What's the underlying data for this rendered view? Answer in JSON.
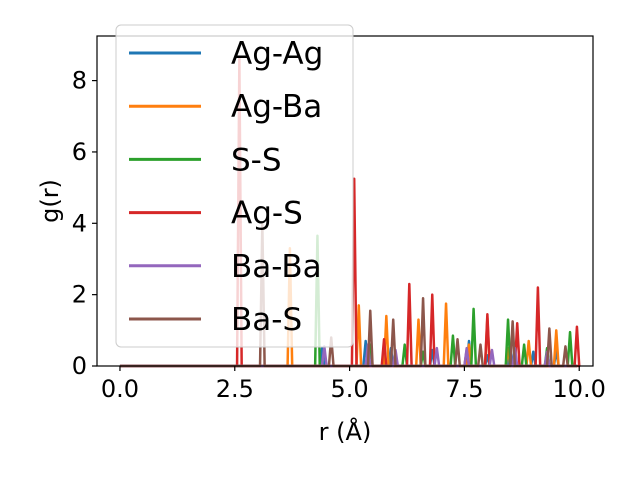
{
  "chart_data": {
    "type": "line",
    "xlabel": "r (Å)",
    "ylabel": "g(r)",
    "xlim": [
      -0.5,
      10.3
    ],
    "ylim": [
      0,
      9.25
    ],
    "x_ticks": [
      0.0,
      2.5,
      5.0,
      7.5,
      10.0
    ],
    "x_tick_labels": [
      "0.0",
      "2.5",
      "5.0",
      "7.5",
      "10.0"
    ],
    "y_ticks": [
      0,
      2,
      4,
      6,
      8
    ],
    "y_tick_labels": [
      "0",
      "2",
      "4",
      "6",
      "8"
    ],
    "grid": false,
    "legend_position": "upper-left",
    "series": [
      {
        "name": "Ag-Ag",
        "color": "#1f77b4",
        "peaks": [
          [
            4.4,
            0.5
          ],
          [
            5.35,
            0.7
          ],
          [
            5.9,
            0.5
          ],
          [
            6.8,
            0.45
          ],
          [
            7.6,
            0.7
          ],
          [
            8.0,
            0.3
          ],
          [
            8.5,
            0.55
          ],
          [
            9.0,
            0.4
          ],
          [
            9.5,
            0.45
          ]
        ]
      },
      {
        "name": "Ag-Ba",
        "color": "#ff7f0e",
        "peaks": [
          [
            3.7,
            3.3
          ],
          [
            5.2,
            1.7
          ],
          [
            5.8,
            1.4
          ],
          [
            6.5,
            1.3
          ],
          [
            7.1,
            1.75
          ],
          [
            7.6,
            0.6
          ],
          [
            8.0,
            1.35
          ],
          [
            8.45,
            0.5
          ],
          [
            8.9,
            0.7
          ],
          [
            9.5,
            1.0
          ]
        ]
      },
      {
        "name": "S-S",
        "color": "#2ca02c",
        "peaks": [
          [
            4.3,
            3.65
          ],
          [
            5.45,
            0.6
          ],
          [
            6.2,
            0.6
          ],
          [
            6.6,
            0.4
          ],
          [
            7.25,
            0.85
          ],
          [
            7.7,
            1.6
          ],
          [
            8.45,
            1.3
          ],
          [
            8.8,
            0.6
          ],
          [
            9.3,
            0.5
          ],
          [
            9.8,
            0.95
          ]
        ]
      },
      {
        "name": "Ag-S",
        "color": "#d62728",
        "peaks": [
          [
            2.6,
            8.65
          ],
          [
            5.1,
            5.25
          ],
          [
            5.75,
            0.75
          ],
          [
            6.3,
            2.3
          ],
          [
            6.8,
            2.0
          ],
          [
            7.55,
            0.45
          ],
          [
            8.0,
            1.45
          ],
          [
            8.65,
            1.2
          ],
          [
            9.1,
            2.2
          ],
          [
            9.95,
            1.1
          ]
        ]
      },
      {
        "name": "Ba-Ba",
        "color": "#9467bd",
        "peaks": [
          [
            4.45,
            0.55
          ],
          [
            5.4,
            0.6
          ],
          [
            6.0,
            0.45
          ],
          [
            6.9,
            0.5
          ],
          [
            7.55,
            0.5
          ],
          [
            8.1,
            0.45
          ],
          [
            8.6,
            0.5
          ],
          [
            9.3,
            0.4
          ]
        ]
      },
      {
        "name": "Ba-S",
        "color": "#8c564b",
        "peaks": [
          [
            3.1,
            4.0
          ],
          [
            4.6,
            0.8
          ],
          [
            5.45,
            1.55
          ],
          [
            5.95,
            1.3
          ],
          [
            6.6,
            1.9
          ],
          [
            7.35,
            0.75
          ],
          [
            7.85,
            0.6
          ],
          [
            8.55,
            1.25
          ],
          [
            9.35,
            1.05
          ],
          [
            9.7,
            0.55
          ]
        ]
      }
    ]
  }
}
